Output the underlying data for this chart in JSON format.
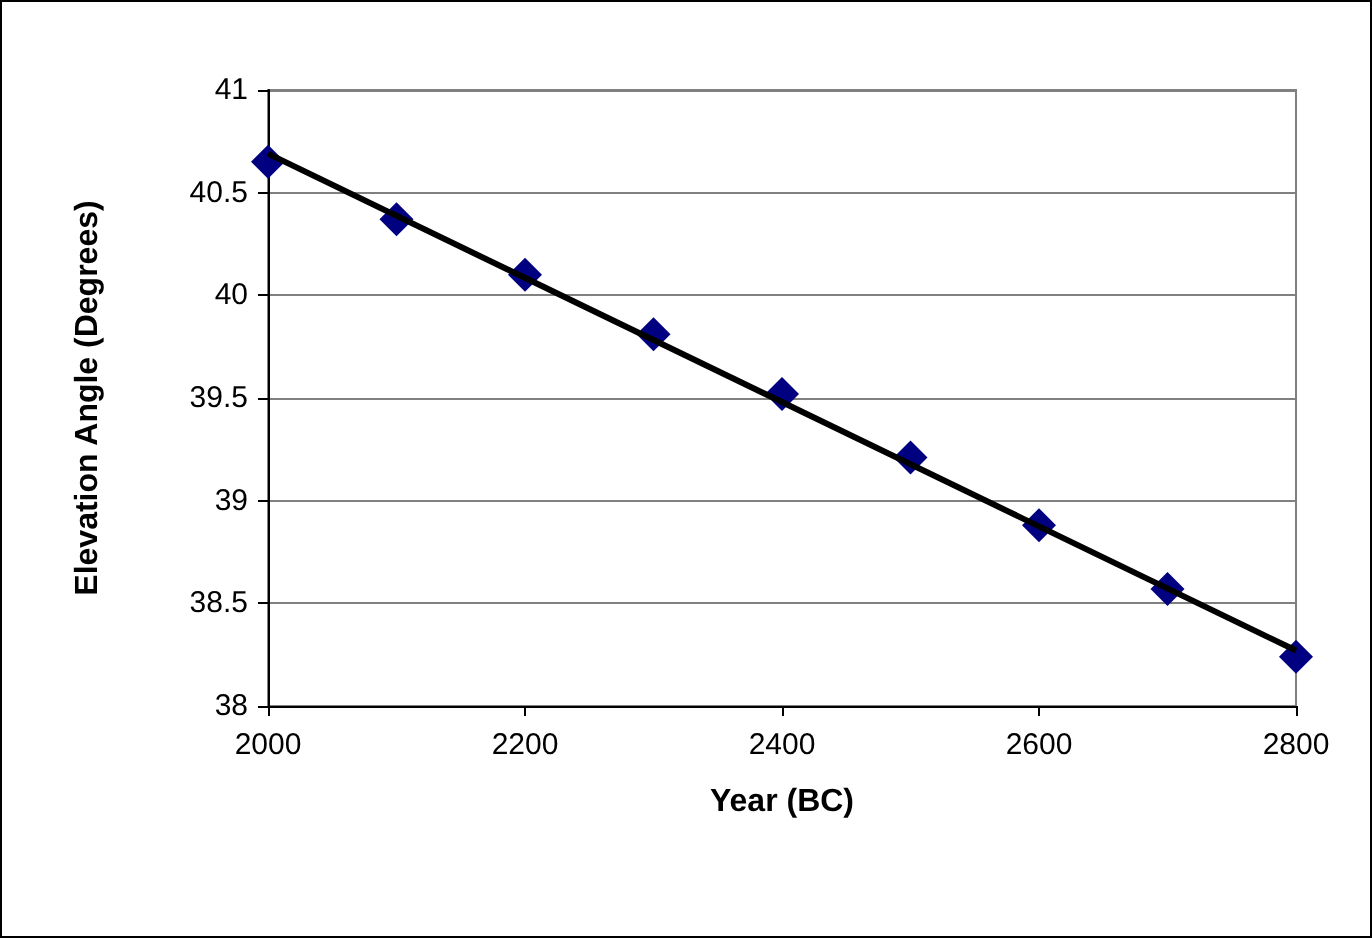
{
  "chart_data": {
    "type": "scatter",
    "xlabel": "Year (BC)",
    "ylabel": "Elevation Angle (Degrees)",
    "marker": "diamond",
    "grid": "y",
    "xlim": [
      2000,
      2800
    ],
    "xticks": [
      2000,
      2200,
      2400,
      2600,
      2800
    ],
    "ylim": [
      38,
      41
    ],
    "yticks": [
      38,
      38.5,
      39,
      39.5,
      40,
      40.5,
      41
    ],
    "series": [
      {
        "color": "#000080",
        "x": [
          2000,
          2100,
          2200,
          2300,
          2400,
          2500,
          2600,
          2700,
          2800
        ],
        "values": [
          40.65,
          40.37,
          40.1,
          39.81,
          39.52,
          39.21,
          38.88,
          38.57,
          38.24
        ]
      },
      {
        "type": "line",
        "marker": "none",
        "color": "#000000",
        "x": [
          2000,
          2800
        ],
        "values": [
          40.69,
          38.27
        ]
      }
    ]
  }
}
